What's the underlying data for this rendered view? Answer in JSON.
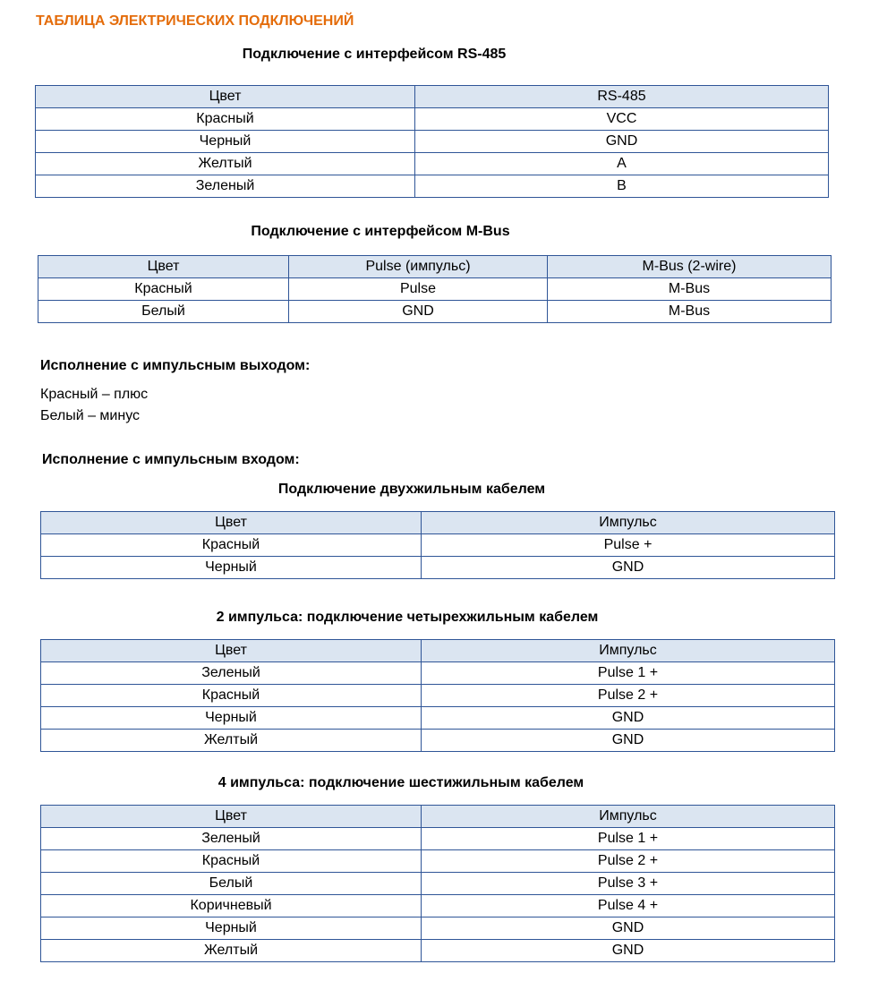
{
  "title": "ТАБЛИЦА ЭЛЕКТРИЧЕСКИХ ПОДКЛЮЧЕНИЙ",
  "rs485": {
    "heading": "Подключение с интерфейсом RS-485",
    "columns": [
      "Цвет",
      "RS-485"
    ],
    "rows": [
      [
        "Красный",
        "VCC"
      ],
      [
        "Черный",
        "GND"
      ],
      [
        "Желтый",
        "A"
      ],
      [
        "Зеленый",
        "B"
      ]
    ]
  },
  "mbus": {
    "heading": "Подключение с интерфейсом M-Bus",
    "columns": [
      "Цвет",
      "Pulse (импульс)",
      "M-Bus (2-wire)"
    ],
    "rows": [
      [
        "Красный",
        "Pulse",
        "M-Bus"
      ],
      [
        "Белый",
        "GND",
        "M-Bus"
      ]
    ]
  },
  "pulse_output": {
    "heading": "Исполнение с импульсным выходом:",
    "lines": [
      "Красный – плюс",
      "Белый – минус"
    ]
  },
  "pulse_input": {
    "heading": "Исполнение с импульсным входом:"
  },
  "two_wire": {
    "heading": "Подключение двухжильным кабелем",
    "columns": [
      "Цвет",
      "Импульс"
    ],
    "rows": [
      [
        "Красный",
        "Pulse +"
      ],
      [
        "Черный",
        "GND"
      ]
    ]
  },
  "four_wire": {
    "heading": "2 импульса: подключение четырехжильным кабелем",
    "columns": [
      "Цвет",
      "Импульс"
    ],
    "rows": [
      [
        "Зеленый",
        "Pulse 1 +"
      ],
      [
        "Красный",
        "Pulse 2 +"
      ],
      [
        "Черный",
        "GND"
      ],
      [
        "Желтый",
        "GND"
      ]
    ]
  },
  "six_wire": {
    "heading": "4 импульса: подключение шестижильным кабелем",
    "columns": [
      "Цвет",
      "Импульс"
    ],
    "rows": [
      [
        "Зеленый",
        "Pulse 1 +"
      ],
      [
        "Красный",
        "Pulse 2 +"
      ],
      [
        "Белый",
        "Pulse 3 +"
      ],
      [
        "Коричневый",
        "Pulse 4 +"
      ],
      [
        "Черный",
        "GND"
      ],
      [
        "Желтый",
        "GND"
      ]
    ]
  }
}
